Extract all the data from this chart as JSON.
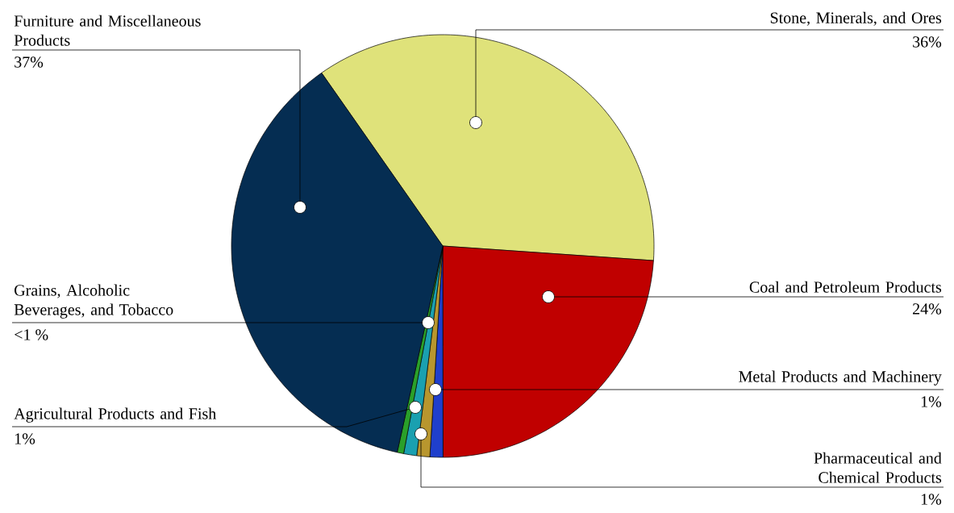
{
  "chart_data": {
    "type": "pie",
    "categories": [
      "Stone, Minerals, and Ores",
      "Coal and Petroleum Products",
      "Metal Products and Machinery",
      "Pharmaceutical and Chemical Products",
      "Agricultural Products and Fish",
      "Grains, Alcoholic Beverages, and Tobacco",
      "Furniture and Miscellaneous Products"
    ],
    "values": [
      36,
      24,
      1,
      1,
      1,
      0.5,
      37
    ],
    "value_labels": [
      "36%",
      "24%",
      "1%",
      "1%",
      "1%",
      "<1 %",
      "37%"
    ],
    "colors": [
      "#dfe27a",
      "#c00000",
      "#1f3fcc",
      "#b8962e",
      "#1aa0b0",
      "#2aa02a",
      "#052d52"
    ]
  }
}
